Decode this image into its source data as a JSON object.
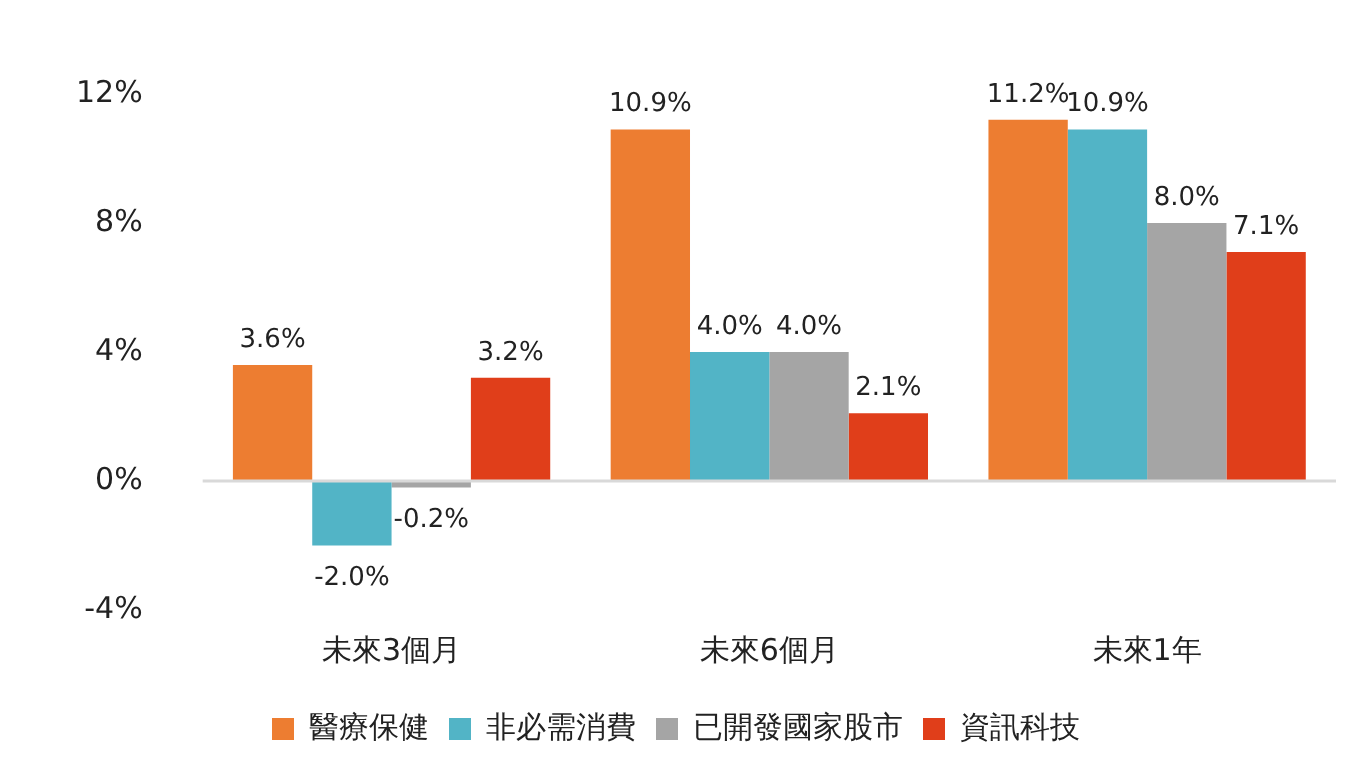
{
  "chart_data": {
    "type": "bar",
    "categories": [
      "未來3個月",
      "未來6個月",
      "未來1年"
    ],
    "series": [
      {
        "name": "醫療保健",
        "color": "#ed7d31",
        "values": [
          3.6,
          10.9,
          11.2
        ],
        "value_labels": [
          "3.6%",
          "10.9%",
          "11.2%"
        ]
      },
      {
        "name": "非必需消費",
        "color": "#52b4c6",
        "values": [
          -2.0,
          4.0,
          10.9
        ],
        "value_labels": [
          "-2.0%",
          "4.0%",
          "10.9%"
        ]
      },
      {
        "name": "已開發國家股市",
        "color": "#a5a5a5",
        "values": [
          -0.2,
          4.0,
          8.0
        ],
        "value_labels": [
          "-0.2%",
          "4.0%",
          "8.0%"
        ]
      },
      {
        "name": "資訊科技",
        "color": "#e03e1a",
        "values": [
          3.2,
          2.1,
          7.1
        ],
        "value_labels": [
          "3.2%",
          "2.1%",
          "7.1%"
        ]
      }
    ],
    "ylim": [
      -4,
      12
    ],
    "yticks": [
      {
        "value": -4,
        "label": "-4%"
      },
      {
        "value": 0,
        "label": "0%"
      },
      {
        "value": 4,
        "label": "4%"
      },
      {
        "value": 8,
        "label": "8%"
      },
      {
        "value": 12,
        "label": "12%"
      }
    ],
    "ref_lines": [
      {
        "axis": "y",
        "value": 0,
        "color": "#d9d9d9"
      }
    ],
    "grid": false,
    "legend": "bottom"
  }
}
